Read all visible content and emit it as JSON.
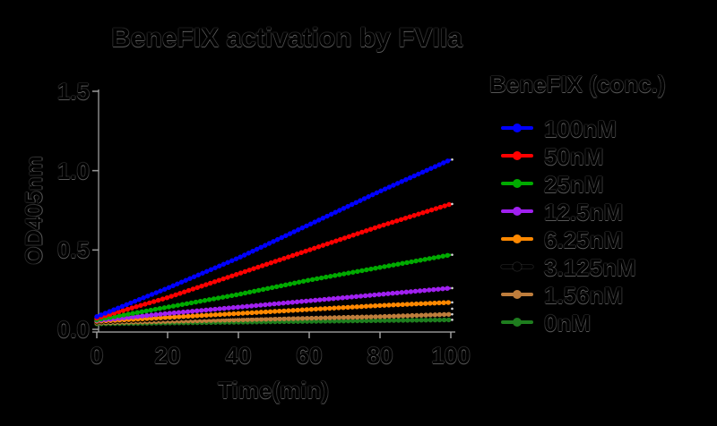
{
  "chart_data": {
    "type": "line",
    "title": "BeneFIX activation by FVIIa",
    "xlabel": "Time(min)",
    "ylabel": "OD405nm",
    "x": [
      0,
      20,
      40,
      60,
      80,
      100
    ],
    "xlim": [
      0,
      100
    ],
    "ylim": [
      0,
      1.5
    ],
    "x_ticks": [
      0,
      20,
      40,
      60,
      80,
      100
    ],
    "y_ticks": [
      0.0,
      0.5,
      1.0,
      1.5
    ],
    "grid": false,
    "legend_position": "right",
    "legend_title": "BeneFIX (conc.)",
    "series": [
      {
        "name": "100nM",
        "color": "#0000FF",
        "values": [
          0.08,
          0.26,
          0.45,
          0.66,
          0.87,
          1.07
        ]
      },
      {
        "name": "50nM",
        "color": "#FF0000",
        "values": [
          0.07,
          0.2,
          0.35,
          0.5,
          0.65,
          0.79
        ]
      },
      {
        "name": "25nM",
        "color": "#00AA00",
        "values": [
          0.06,
          0.14,
          0.22,
          0.31,
          0.39,
          0.47
        ]
      },
      {
        "name": "12.5nM",
        "color": "#A020F0",
        "values": [
          0.055,
          0.1,
          0.14,
          0.18,
          0.22,
          0.26
        ]
      },
      {
        "name": "6.25nM",
        "color": "#FF8800",
        "values": [
          0.05,
          0.075,
          0.1,
          0.125,
          0.15,
          0.17
        ]
      },
      {
        "name": "3.125nM",
        "color": "#000000",
        "values": [
          0.045,
          0.065,
          0.085,
          0.1,
          0.115,
          0.13
        ]
      },
      {
        "name": "1.56nM",
        "color": "#BE7D3C",
        "values": [
          0.04,
          0.05,
          0.06,
          0.07,
          0.08,
          0.095
        ]
      },
      {
        "name": "0nM",
        "color": "#1E7D1E",
        "values": [
          0.035,
          0.04,
          0.045,
          0.05,
          0.055,
          0.06
        ]
      }
    ],
    "style": {
      "background_color": "#000000",
      "text_color": "#000000",
      "axis_color": "#ABABAB",
      "marker": "circle"
    }
  }
}
